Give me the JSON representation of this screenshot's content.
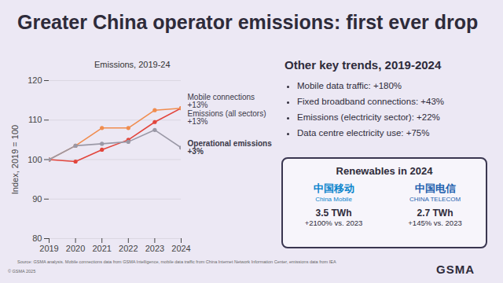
{
  "title": "Greater China operator emissions: first ever drop",
  "chart_data": {
    "type": "line",
    "title": "Emissions, 2019-24",
    "y_label": "Index, 2019 = 100",
    "x": [
      2019,
      2020,
      2021,
      2022,
      2023,
      2024
    ],
    "xlim": [
      2019,
      2024
    ],
    "xticks": [
      2019,
      2020,
      2021,
      2022,
      2023,
      2024
    ],
    "ylim": [
      80,
      120
    ],
    "yticks": [
      80,
      90,
      100,
      110,
      120
    ],
    "grid": true,
    "marker": "circle",
    "series": [
      {
        "name": "Mobile connections",
        "annotation": "+13%",
        "color": "#e2453c",
        "values": [
          100,
          99.5,
          102.5,
          105,
          109.5,
          113
        ]
      },
      {
        "name": "Emissions (all sectors)",
        "annotation": "+13%",
        "color": "#f08c4e",
        "values": [
          100,
          103.5,
          108,
          108,
          112.5,
          113
        ]
      },
      {
        "name": "Operational emissions",
        "annotation": "+3%",
        "color": "#9a98a6",
        "values": [
          100,
          103.5,
          104,
          104.5,
          107.5,
          103
        ]
      }
    ]
  },
  "other_trends": {
    "title": "Other key trends, 2019-2024",
    "items": [
      "Mobile data traffic: +180%",
      "Fixed broadband connections: +43%",
      "Emissions (electricity sector): +22%",
      "Data centre electricity use: +75%"
    ]
  },
  "renewables": {
    "title": "Renewables in 2024",
    "companies": [
      {
        "name_zh": "中国移动",
        "name_en": "China Mobile",
        "value": "3.5 TWh",
        "change": "+2100% vs. 2023"
      },
      {
        "name_zh": "中国电信",
        "name_en": "CHINA TELECOM",
        "value": "2.7 TWh",
        "change": "+145% vs. 2023"
      }
    ]
  },
  "source": "Source: GSMA analysis. Mobile connections data from GSMA Intelligence, mobile data traffic from China Internet Network Information Center, emissions data from IEA",
  "copyright": "© GSMA 2025",
  "logo": "GSMA"
}
